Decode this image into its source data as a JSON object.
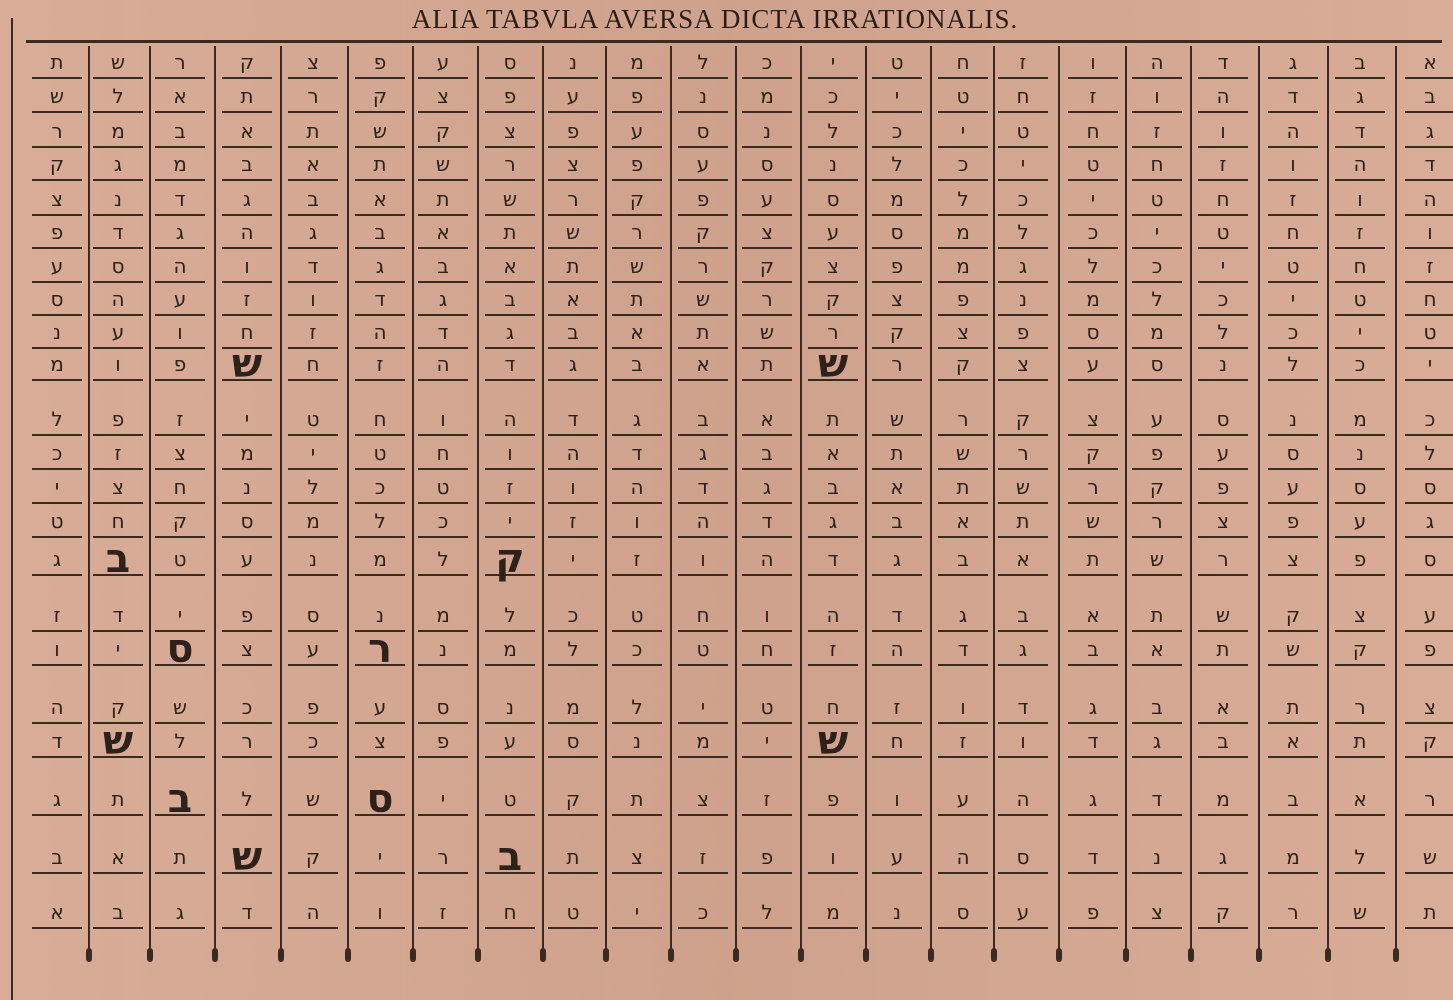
{
  "title": "ALIA TABVLA AVERSA DICTA IRRATIONALIS.",
  "colors": {
    "paper": "#d7a892",
    "ink": "#2e2119"
  },
  "table": {
    "direction": "columns read right-to-left as given; each row listed left-to-right as printed",
    "rows": [
      [
        "ת",
        "ש",
        "ר",
        "ק",
        "צ",
        "פ",
        "ע",
        "ס",
        "נ",
        "מ",
        "ל",
        "כ",
        "י",
        "ט",
        "ח",
        "ז",
        "ו",
        "ה",
        "ד",
        "ג",
        "ב",
        "א"
      ],
      [
        "ש",
        "ל",
        "א",
        "ת",
        "ר",
        "ק",
        "צ",
        "פ",
        "ע",
        "פ",
        "נ",
        "מ",
        "כ",
        "י",
        "ט",
        "ח",
        "ז",
        "ו",
        "ה",
        "ד",
        "ג",
        "ב"
      ],
      [
        "ר",
        "מ",
        "ב",
        "א",
        "ת",
        "ש",
        "ק",
        "צ",
        "פ",
        "ע",
        "ס",
        "נ",
        "ל",
        "כ",
        "י",
        "ט",
        "ח",
        "ז",
        "ו",
        "ה",
        "ד",
        "ג"
      ],
      [
        "ק",
        "ג",
        "מ",
        "ב",
        "א",
        "ת",
        "ש",
        "ר",
        "צ",
        "פ",
        "ע",
        "ס",
        "נ",
        "ל",
        "כ",
        "י",
        "ט",
        "ח",
        "ז",
        "ו",
        "ה",
        "ד"
      ],
      [
        "צ",
        "נ",
        "ד",
        "ג",
        "ב",
        "א",
        "ת",
        "ש",
        "ר",
        "ק",
        "פ",
        "ע",
        "ס",
        "מ",
        "ל",
        "כ",
        "י",
        "ט",
        "ח",
        "ז",
        "ו",
        "ה"
      ],
      [
        "פ",
        "ד",
        "ג",
        "ה",
        "ג",
        "ב",
        "א",
        "ת",
        "ש",
        "ר",
        "ק",
        "צ",
        "ע",
        "ס",
        "מ",
        "ל",
        "כ",
        "י",
        "ט",
        "ח",
        "ז",
        "ו"
      ],
      [
        "ע",
        "ס",
        "ה",
        "ו",
        "ד",
        "ג",
        "ב",
        "א",
        "ת",
        "ש",
        "ר",
        "ק",
        "צ",
        "פ",
        "מ",
        "ג",
        "ל",
        "כ",
        "י",
        "ט",
        "ח",
        "ז"
      ],
      [
        "ס",
        "ה",
        "ע",
        "ז",
        "ו",
        "ד",
        "ג",
        "ב",
        "א",
        "ת",
        "ש",
        "ר",
        "ק",
        "צ",
        "פ",
        "נ",
        "מ",
        "ל",
        "כ",
        "י",
        "ט",
        "ח"
      ],
      [
        "נ",
        "ע",
        "ו",
        "ח",
        "ז",
        "ה",
        "ד",
        "ג",
        "ב",
        "א",
        "ת",
        "ש",
        "ר",
        "ק",
        "צ",
        "פ",
        "ס",
        "מ",
        "ל",
        "כ",
        "י",
        "ט"
      ],
      [
        "מ",
        "ו",
        "פ",
        "ש",
        "ח",
        "ז",
        "ה",
        "ד",
        "ג",
        "ב",
        "א",
        "ת",
        "ש",
        "ר",
        "ק",
        "צ",
        "ע",
        "ס",
        "נ",
        "ל",
        "כ",
        "י"
      ],
      [
        "ל",
        "פ",
        "ז",
        "י",
        "ט",
        "ח",
        "ו",
        "ה",
        "ד",
        "ג",
        "ב",
        "א",
        "ת",
        "ש",
        "ר",
        "ק",
        "צ",
        "ע",
        "ס",
        "נ",
        "מ",
        "כ"
      ],
      [
        "כ",
        "ז",
        "צ",
        "מ",
        "י",
        "ט",
        "ח",
        "ו",
        "ה",
        "ד",
        "ג",
        "ב",
        "א",
        "ת",
        "ש",
        "ר",
        "ק",
        "פ",
        "ע",
        "ס",
        "נ",
        "ל"
      ],
      [
        "י",
        "צ",
        "ח",
        "נ",
        "ל",
        "כ",
        "ט",
        "ז",
        "ו",
        "ה",
        "ד",
        "ג",
        "ב",
        "א",
        "ת",
        "ש",
        "ר",
        "ק",
        "פ",
        "ע",
        "ס",
        "ס"
      ],
      [
        "ט",
        "ח",
        "ק",
        "ס",
        "מ",
        "ל",
        "כ",
        "י",
        "ז",
        "ו",
        "ה",
        "ד",
        "ג",
        "ב",
        "א",
        "ת",
        "ש",
        "ר",
        "צ",
        "פ",
        "ע",
        "ג"
      ],
      [
        "ג",
        "ב",
        "ט",
        "ע",
        "נ",
        "מ",
        "ל",
        "ק",
        "י",
        "ז",
        "ו",
        "ה",
        "ד",
        "ג",
        "ב",
        "א",
        "ת",
        "ש",
        "ר",
        "צ",
        "פ",
        "ס"
      ],
      [
        "ז",
        "ד",
        "י",
        "פ",
        "ס",
        "נ",
        "מ",
        "ל",
        "כ",
        "ט",
        "ח",
        "ו",
        "ה",
        "ד",
        "ג",
        "ב",
        "א",
        "ת",
        "ש",
        "ק",
        "צ",
        "ע"
      ],
      [
        "ו",
        "י",
        "ס",
        "צ",
        "ע",
        "ר",
        "נ",
        "מ",
        "ל",
        "כ",
        "ט",
        "ח",
        "ז",
        "ה",
        "ד",
        "ג",
        "ב",
        "א",
        "ת",
        "ש",
        "ק",
        "פ"
      ],
      [
        "ה",
        "ק",
        "ש",
        "כ",
        "פ",
        "ע",
        "ס",
        "נ",
        "מ",
        "ל",
        "י",
        "ט",
        "ח",
        "ז",
        "ו",
        "ד",
        "ג",
        "ב",
        "א",
        "ת",
        "ר",
        "צ"
      ],
      [
        "ד",
        "ש",
        "ל",
        "ר",
        "כ",
        "צ",
        "פ",
        "ע",
        "ס",
        "נ",
        "מ",
        "י",
        "ש",
        "ח",
        "ז",
        "ו",
        "ד",
        "ג",
        "ב",
        "א",
        "ת",
        "ק"
      ],
      [
        "ג",
        "ת",
        "ב",
        "ל",
        "ש",
        "ס",
        "י",
        "ט",
        "ק",
        "ת",
        "צ",
        "ז",
        "פ",
        "ו",
        "ע",
        "ה",
        "ג",
        "ד",
        "מ",
        "ב",
        "א",
        "ר"
      ],
      [
        "ב",
        "א",
        "ת",
        "ש",
        "ק",
        "י",
        "ר",
        "ב",
        "ת",
        "צ",
        "ז",
        "פ",
        "ו",
        "ע",
        "ה",
        "ס",
        "ד",
        "נ",
        "ג",
        "מ",
        "ל",
        "ש"
      ],
      [
        "א",
        "ב",
        "ג",
        "ד",
        "ה",
        "ו",
        "ז",
        "ח",
        "ט",
        "י",
        "כ",
        "ל",
        "מ",
        "נ",
        "ס",
        "ע",
        "פ",
        "צ",
        "ק",
        "ר",
        "ש",
        "ת"
      ]
    ],
    "emphasized_cells": [
      [
        9,
        3
      ],
      [
        9,
        12
      ],
      [
        14,
        1
      ],
      [
        14,
        7
      ],
      [
        16,
        2
      ],
      [
        16,
        5
      ],
      [
        18,
        1
      ],
      [
        18,
        12
      ],
      [
        19,
        2
      ],
      [
        19,
        5
      ],
      [
        20,
        3
      ],
      [
        20,
        7
      ]
    ]
  }
}
